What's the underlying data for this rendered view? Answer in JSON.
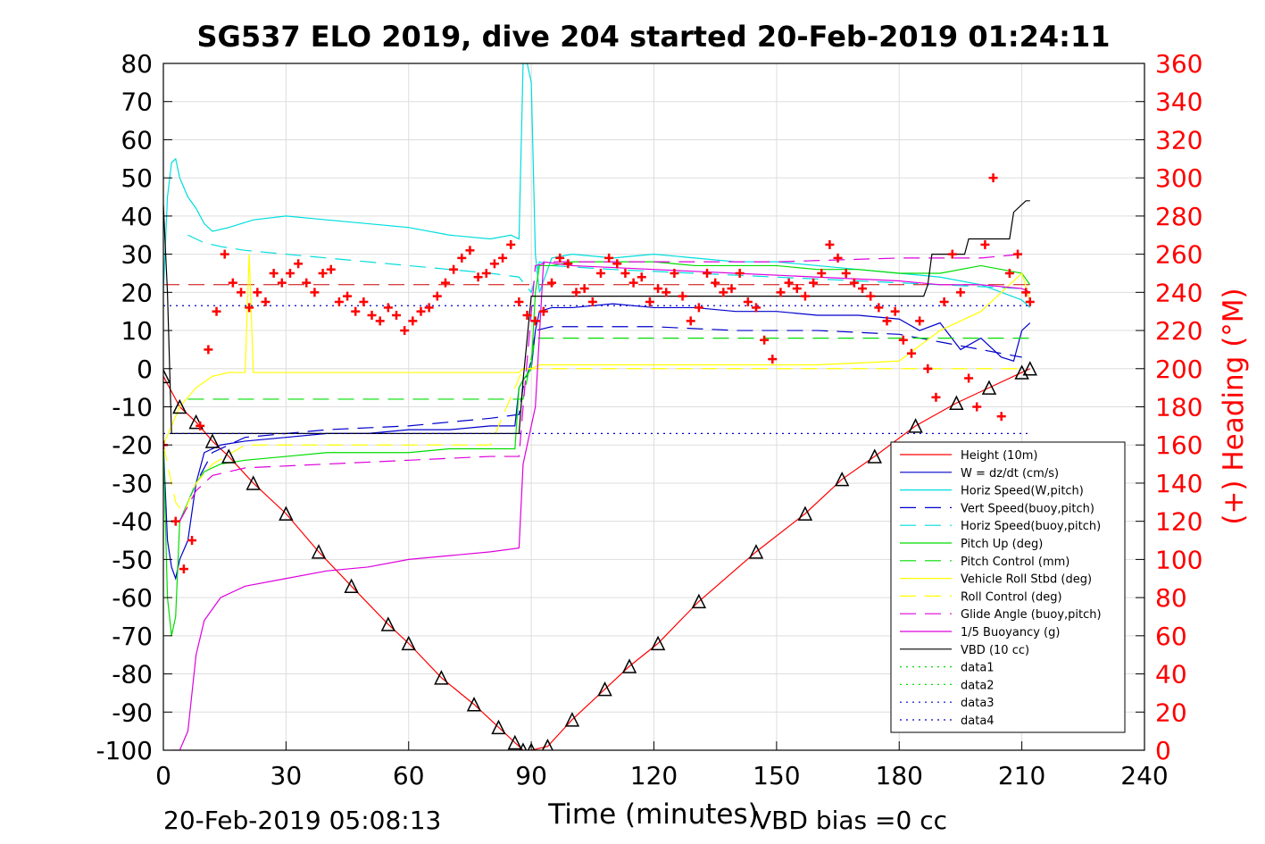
{
  "chart_data": {
    "type": "line",
    "title": "SG537 ELO 2019, dive 204 started 20-Feb-2019 01:24:11",
    "xlabel": "Time (minutes)",
    "ylabel_right": "(+) Heading (°M)",
    "footer_left": "20-Feb-2019 05:08:13",
    "footer_right": "VBD bias =0 cc",
    "xlim": [
      0,
      240
    ],
    "ylim": [
      -100,
      80
    ],
    "ylim_right": [
      0,
      360
    ],
    "x_ticks": [
      "0",
      "30",
      "60",
      "90",
      "120",
      "150",
      "180",
      "210",
      "240"
    ],
    "y_ticks": [
      "80",
      "70",
      "60",
      "50",
      "40",
      "30",
      "20",
      "10",
      "0",
      "-10",
      "-20",
      "-30",
      "-40",
      "-50",
      "-60",
      "-70",
      "-80",
      "-90",
      "-100"
    ],
    "y_right_ticks": [
      "360",
      "340",
      "320",
      "300",
      "280",
      "260",
      "240",
      "220",
      "200",
      "180",
      "160",
      "140",
      "120",
      "100",
      "80",
      "60",
      "40",
      "20",
      "0"
    ],
    "grid": true,
    "legend_position": "bottom-right",
    "series": [
      {
        "name": "Height (10m)",
        "color": "#ff0000",
        "style": "solid",
        "x": [
          0,
          4,
          8,
          12,
          16,
          22,
          30,
          38,
          46,
          55,
          60,
          68,
          76,
          82,
          86,
          88,
          90,
          94,
          100,
          108,
          114,
          121,
          131,
          145,
          157,
          166,
          174,
          184,
          194,
          202,
          210,
          212
        ],
        "y": [
          -2,
          -10,
          -14,
          -19,
          -23,
          -30,
          -38,
          -48,
          -57,
          -67,
          -72,
          -81,
          -88,
          -94,
          -98,
          -100,
          -100,
          -99,
          -92,
          -84,
          -78,
          -72,
          -61,
          -48,
          -38,
          -29,
          -23,
          -15,
          -9,
          -5,
          -1,
          0
        ]
      },
      {
        "name": "W = dz/dt (cm/s)",
        "color": "#0000cc",
        "style": "solid",
        "x": [
          0,
          1,
          2,
          3,
          4,
          6,
          8,
          10,
          14,
          20,
          30,
          40,
          50,
          60,
          70,
          80,
          86,
          87,
          88,
          90,
          91,
          92,
          95,
          100,
          110,
          120,
          130,
          140,
          150,
          160,
          170,
          180,
          185,
          190,
          195,
          200,
          205,
          208,
          210,
          212
        ],
        "y": [
          -20,
          -45,
          -52,
          -55,
          -50,
          -45,
          -30,
          -22,
          -20,
          -19,
          -18,
          -17,
          -17,
          -16,
          -16,
          -15,
          -15,
          -5,
          -3,
          0,
          10,
          15,
          16,
          16,
          17,
          16,
          16,
          15,
          15,
          14,
          14,
          13,
          10,
          12,
          5,
          8,
          3,
          2,
          10,
          12
        ]
      },
      {
        "name": "Horiz Speed(W,pitch)",
        "color": "#00dddd",
        "style": "solid",
        "x": [
          0,
          1,
          2,
          3,
          4,
          6,
          8,
          10,
          12,
          16,
          22,
          30,
          40,
          50,
          60,
          70,
          80,
          85,
          87,
          88,
          89,
          90,
          91,
          92,
          95,
          100,
          110,
          120,
          130,
          140,
          150,
          160,
          170,
          180,
          190,
          200,
          205,
          210,
          212
        ],
        "y": [
          20,
          45,
          54,
          55,
          50,
          45,
          42,
          38,
          36,
          37,
          39,
          40,
          39,
          38,
          37,
          35,
          34,
          35,
          34,
          80,
          80,
          75,
          30,
          20,
          29,
          30,
          29,
          30,
          29,
          28,
          28,
          27,
          26,
          25,
          24,
          22,
          20,
          18,
          16
        ]
      },
      {
        "name": "Vert Speed(buoy,pitch)",
        "color": "#0000cc",
        "style": "dashed",
        "x": [
          4,
          8,
          12,
          20,
          40,
          60,
          80,
          87,
          88,
          90,
          91,
          95,
          100,
          120,
          140,
          160,
          180,
          190,
          200,
          210
        ],
        "y": [
          -40,
          -30,
          -22,
          -18,
          -16,
          -15,
          -13,
          -12,
          -5,
          2,
          10,
          11,
          11,
          11,
          10,
          10,
          9,
          7,
          5,
          3
        ]
      },
      {
        "name": "Horiz Speed(buoy,pitch)",
        "color": "#00dddd",
        "style": "dashed",
        "x": [
          6,
          10,
          14,
          20,
          40,
          60,
          80,
          87,
          90,
          92,
          95,
          110,
          130,
          150,
          170,
          190,
          210
        ],
        "y": [
          35,
          33,
          32,
          31,
          29,
          27,
          25,
          24,
          20,
          28,
          27,
          26,
          25,
          24,
          23,
          22,
          21
        ]
      },
      {
        "name": "Pitch Up (deg)",
        "color": "#00dd00",
        "style": "solid",
        "x": [
          0,
          1,
          2,
          3,
          4,
          6,
          8,
          10,
          14,
          20,
          30,
          40,
          50,
          60,
          70,
          80,
          86,
          87,
          88,
          90,
          91,
          92,
          95,
          100,
          110,
          120,
          130,
          140,
          150,
          160,
          170,
          180,
          190,
          200,
          205,
          210,
          212
        ],
        "y": [
          -20,
          -60,
          -70,
          -65,
          -40,
          -35,
          -30,
          -27,
          -25,
          -24,
          -23,
          -22,
          -22,
          -22,
          -21,
          -21,
          -21,
          -5,
          -3,
          0,
          20,
          27,
          27,
          28,
          28,
          28,
          27,
          27,
          27,
          26,
          26,
          25,
          25,
          27,
          26,
          25,
          22
        ]
      },
      {
        "name": "Pitch Control (mm)",
        "color": "#00dd00",
        "style": "dashed",
        "x": [
          6,
          87,
          88,
          91,
          212
        ],
        "y": [
          -8,
          -8,
          -8,
          8,
          8
        ]
      },
      {
        "name": "Vehicle Roll Stbd (deg)",
        "color": "#ffff00",
        "style": "solid",
        "x": [
          0,
          4,
          8,
          12,
          16,
          20,
          21,
          22,
          24,
          40,
          60,
          80,
          87,
          88,
          90,
          92,
          100,
          130,
          160,
          180,
          190,
          200,
          205,
          210,
          212
        ],
        "y": [
          -20,
          -10,
          -5,
          -2,
          -1,
          -1,
          30,
          -1,
          -1,
          -1,
          -1,
          -1,
          -1,
          0,
          0,
          1,
          1,
          1,
          1,
          2,
          10,
          15,
          20,
          25,
          18
        ]
      },
      {
        "name": "Roll Control (deg)",
        "color": "#ffff00",
        "style": "dashed",
        "x": [
          0,
          3,
          5,
          8,
          12,
          20,
          40,
          60,
          80,
          88,
          90,
          110,
          130,
          150,
          170,
          190,
          210
        ],
        "y": [
          -20,
          -35,
          -38,
          -30,
          -25,
          -20,
          -20,
          -20,
          -20,
          0,
          0,
          0,
          0,
          0,
          0,
          0,
          0
        ]
      },
      {
        "name": "Glide Angle (buoy,pitch)",
        "color": "#dd00dd",
        "style": "dashed",
        "x": [
          4,
          8,
          12,
          20,
          40,
          60,
          80,
          87,
          88,
          91,
          95,
          120,
          150,
          180,
          200,
          210
        ],
        "y": [
          -40,
          -32,
          -28,
          -26,
          -25,
          -24,
          -23,
          -23,
          -10,
          27,
          28,
          28,
          28,
          29,
          29,
          30
        ]
      },
      {
        "name": "1/5 Buoyancy (g)",
        "color": "#dd00dd",
        "style": "solid",
        "x": [
          2,
          4,
          6,
          8,
          10,
          14,
          20,
          30,
          40,
          50,
          60,
          70,
          80,
          87,
          88,
          90,
          91,
          93,
          100,
          120,
          140,
          160,
          180,
          190,
          200,
          210,
          212
        ],
        "y": [
          -100,
          -100,
          -95,
          -75,
          -66,
          -60,
          -57,
          -55,
          -53,
          -52,
          -50,
          -49,
          -48,
          -47,
          -25,
          -15,
          -10,
          28,
          27,
          26,
          25,
          24,
          23,
          22,
          22,
          21,
          20
        ]
      },
      {
        "name": "VBD (10 cc)",
        "color": "#000000",
        "style": "solid",
        "x": [
          0,
          1,
          2,
          4,
          87,
          88,
          90,
          92,
          186,
          187,
          188,
          196,
          197,
          207,
          208,
          211,
          212
        ],
        "y": [
          43,
          20,
          -17,
          -17,
          -17,
          -3,
          19,
          19,
          19,
          22,
          30,
          30,
          34,
          34,
          41,
          44,
          44
        ]
      },
      {
        "name": "data1",
        "color": "#00dd00",
        "style": "dotted",
        "x": [],
        "y": []
      },
      {
        "name": "data2",
        "color": "#00dd00",
        "style": "dotted",
        "x": [],
        "y": []
      },
      {
        "name": "data3",
        "color": "#0000cc",
        "style": "dotted",
        "x": [
          0,
          212
        ],
        "y": [
          16.5,
          16.5
        ]
      },
      {
        "name": "data4",
        "color": "#0000cc",
        "style": "dotted",
        "x": [
          0,
          212
        ],
        "y": [
          -17,
          -17
        ]
      }
    ],
    "reference_line": {
      "color": "#cc0000",
      "style": "dashed",
      "x": [
        0,
        212
      ],
      "y": [
        22,
        22
      ]
    },
    "heading": {
      "color": "#ff0000",
      "marker": "+",
      "axis": "right",
      "x": [
        0,
        3,
        5,
        7,
        9,
        11,
        13,
        15,
        17,
        19,
        21,
        23,
        25,
        27,
        29,
        31,
        33,
        35,
        37,
        39,
        41,
        43,
        45,
        47,
        49,
        51,
        53,
        55,
        57,
        59,
        61,
        63,
        65,
        67,
        69,
        71,
        73,
        75,
        77,
        79,
        81,
        83,
        85,
        87,
        89,
        91,
        93,
        95,
        97,
        99,
        101,
        103,
        105,
        107,
        109,
        111,
        113,
        115,
        117,
        119,
        121,
        123,
        125,
        127,
        129,
        131,
        133,
        135,
        137,
        139,
        141,
        143,
        145,
        147,
        149,
        151,
        153,
        155,
        157,
        159,
        161,
        163,
        165,
        167,
        169,
        171,
        173,
        175,
        177,
        179,
        181,
        183,
        185,
        187,
        189,
        191,
        193,
        195,
        197,
        199,
        201,
        203,
        205,
        207,
        209,
        211,
        212
      ],
      "y": [
        160,
        120,
        95,
        110,
        170,
        210,
        230,
        260,
        245,
        240,
        232,
        240,
        235,
        250,
        245,
        250,
        255,
        245,
        240,
        250,
        252,
        235,
        238,
        230,
        235,
        228,
        225,
        232,
        228,
        220,
        225,
        230,
        232,
        238,
        245,
        252,
        258,
        262,
        248,
        250,
        255,
        258,
        265,
        235,
        228,
        225,
        230,
        245,
        258,
        255,
        240,
        242,
        235,
        250,
        258,
        255,
        250,
        245,
        248,
        235,
        242,
        240,
        250,
        238,
        225,
        232,
        250,
        245,
        240,
        242,
        250,
        235,
        232,
        215,
        205,
        240,
        245,
        242,
        238,
        245,
        250,
        265,
        258,
        250,
        245,
        242,
        238,
        232,
        225,
        230,
        215,
        208,
        225,
        200,
        185,
        235,
        260,
        240,
        195,
        180,
        265,
        300,
        175,
        250,
        260,
        240,
        235
      ]
    }
  }
}
